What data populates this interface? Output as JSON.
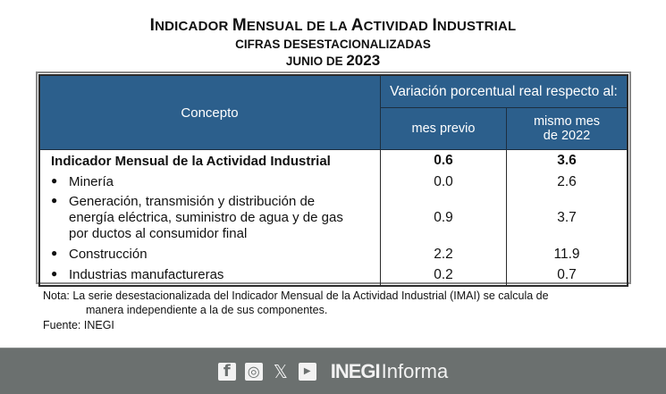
{
  "header": {
    "title_first_letters": [
      "I",
      "M",
      "A",
      "I"
    ],
    "title": "Indicador Mensual de la Actividad Industrial",
    "title_parts": [
      {
        "big": "I",
        "small": "NDICADOR "
      },
      {
        "big": "M",
        "small": "ENSUAL DE LA "
      },
      {
        "big": "A",
        "small": "CTIVIDAD "
      },
      {
        "big": "I",
        "small": "NDUSTRIAL"
      }
    ],
    "subtitle": "CIFRAS DESESTACIONALIZADAS",
    "period_prefix": "JUNIO DE ",
    "period_year": "2023"
  },
  "table": {
    "col_concepto": "Concepto",
    "col_group": "Variación porcentual real respecto al:",
    "col_prev": "mes previo",
    "col_year_line1": "mismo mes",
    "col_year_line2": "de 2022",
    "main_row": {
      "label": "Indicador Mensual de la Actividad Industrial",
      "mes_previo": "0.6",
      "mismo_mes": "3.6"
    },
    "rows": [
      {
        "label": "Minería",
        "mes_previo": "0.0",
        "mismo_mes": "2.6"
      },
      {
        "label": "Generación, transmisión y distribución de energía eléctrica, suministro de agua y de gas por ductos al consumidor final",
        "label_lines": [
          "Generación, transmisión y distribución de",
          "energía eléctrica, suministro de agua y de gas",
          "por ductos al consumidor final"
        ],
        "mes_previo": "0.9",
        "mismo_mes": "3.7"
      },
      {
        "label": "Construcción",
        "mes_previo": "2.2",
        "mismo_mes": "11.9"
      },
      {
        "label": "Industrias manufactureras",
        "mes_previo": "0.2",
        "mismo_mes": "0.7"
      }
    ],
    "bullet": "●"
  },
  "notes": {
    "nota_line1": "Nota: La serie desestacionalizada del Indicador Mensual de la Actividad Industrial (IMAI) se calcula de",
    "nota_line2": "manera independiente a la de sus componentes.",
    "fuente": "Fuente: INEGI"
  },
  "footer": {
    "icons": [
      "facebook-icon",
      "instagram-icon",
      "x-icon",
      "youtube-icon"
    ],
    "facebook_glyph": "f",
    "instagram_glyph": "◎",
    "x_glyph": "𝕏",
    "youtube_glyph": "▶",
    "brand_bold": "INEGI",
    "brand_light": "Informa",
    "background": "#6b706f"
  },
  "colors": {
    "header_bg": "#2c5f8c",
    "header_text": "#ffffff",
    "footer_bg": "#6b706f"
  }
}
